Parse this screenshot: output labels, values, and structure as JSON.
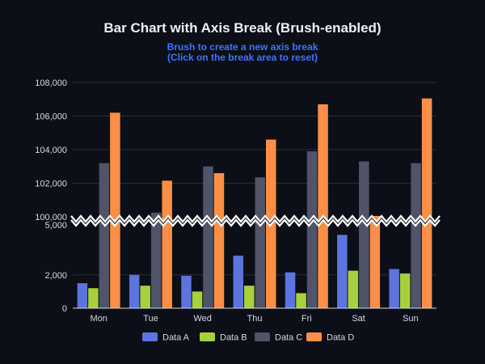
{
  "chart_data": {
    "type": "bar",
    "title": "Bar Chart with Axis Break (Brush-enabled)",
    "subtitle": [
      "Brush to create a new axis break",
      "(Click on the break area to reset)"
    ],
    "categories": [
      "Mon",
      "Tue",
      "Wed",
      "Thu",
      "Fri",
      "Sat",
      "Sun"
    ],
    "series": [
      {
        "name": "Data A",
        "color": "#5b74e0",
        "values": [
          1500,
          2000,
          1950,
          3150,
          2150,
          4400,
          2350
        ]
      },
      {
        "name": "Data B",
        "color": "#a6d13c",
        "values": [
          1200,
          1350,
          1000,
          1350,
          900,
          2250,
          2080
        ]
      },
      {
        "name": "Data C",
        "color": "#4f5468",
        "values": [
          103200,
          100250,
          103000,
          102350,
          103900,
          103300,
          103200
        ]
      },
      {
        "name": "Data D",
        "color": "#fc8f45",
        "values": [
          106200,
          102150,
          102600,
          104600,
          106700,
          100050,
          107050
        ]
      }
    ],
    "y_axis": {
      "lower_ticks": [
        "0",
        "2,000",
        "5,000"
      ],
      "upper_ticks": [
        "100,000",
        "102,000",
        "104,000",
        "106,000",
        "108,000"
      ],
      "lower_range": [
        0,
        5000
      ],
      "upper_range": [
        100000,
        108000
      ],
      "break": [
        5000,
        100000
      ]
    },
    "grid": true,
    "legend_position": "bottom"
  }
}
